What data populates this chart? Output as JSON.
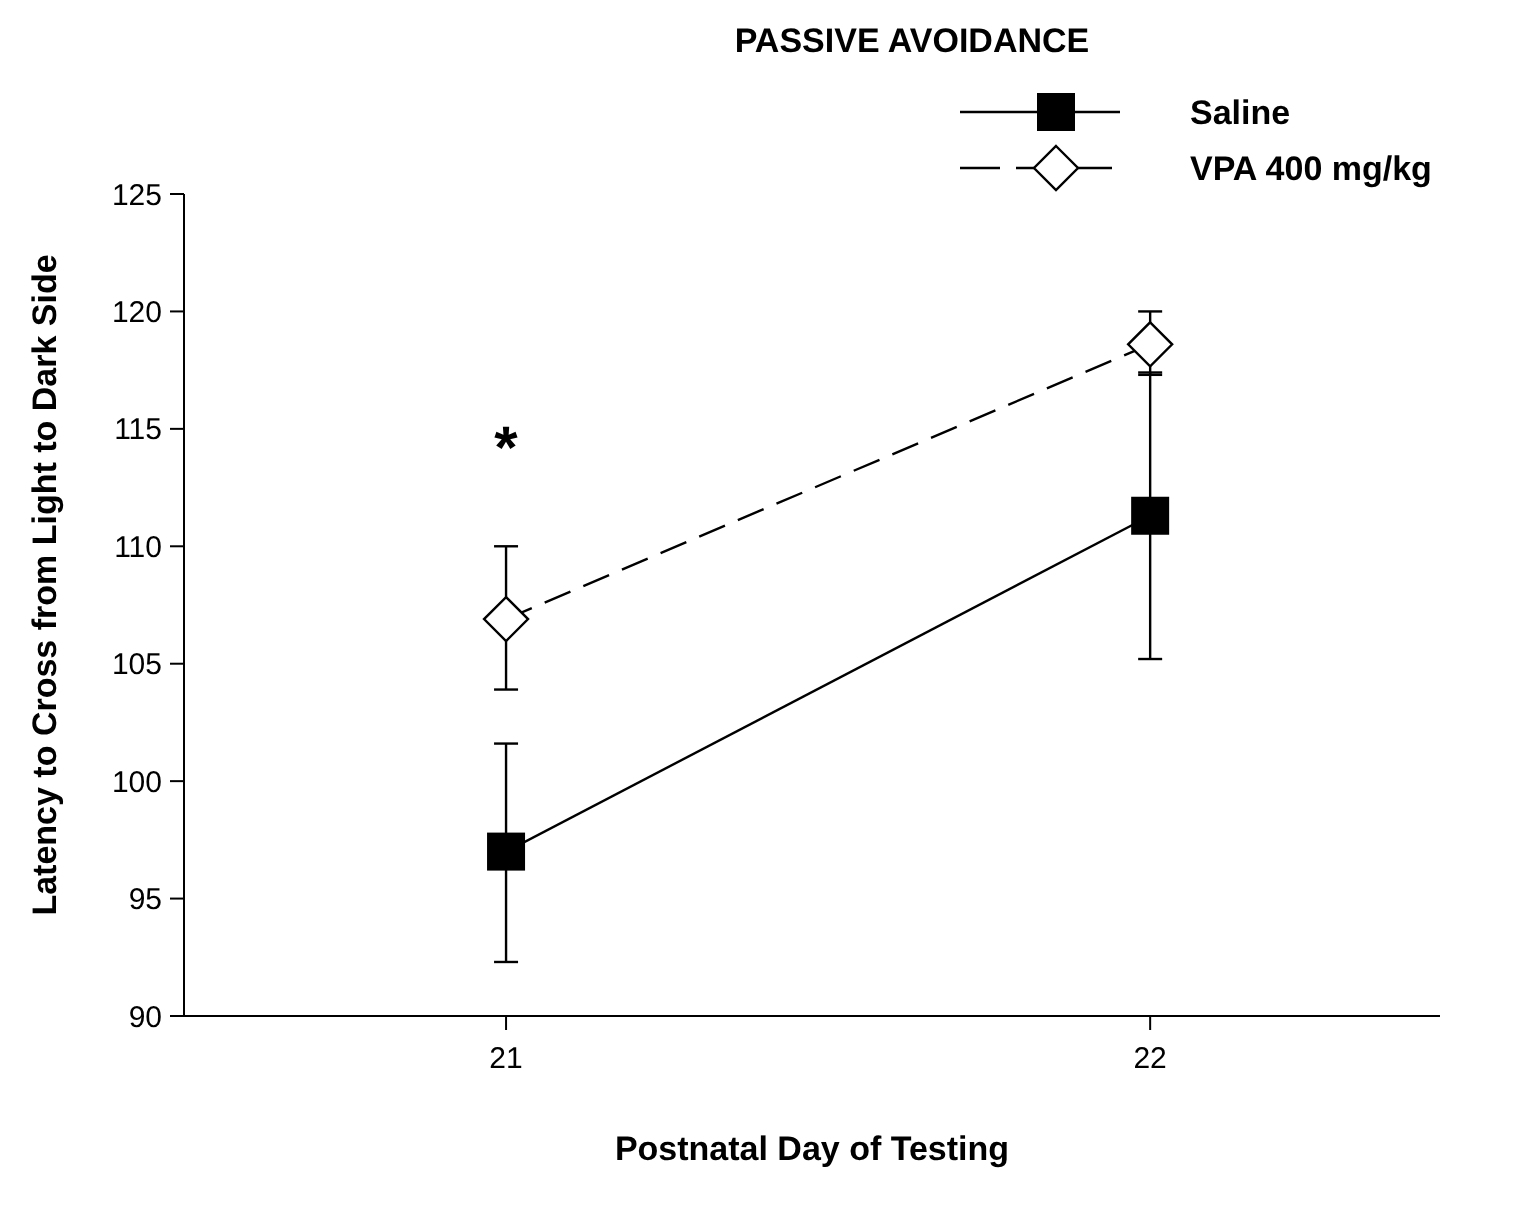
{
  "chart_data": {
    "type": "line",
    "title": "PASSIVE AVOIDANCE",
    "xlabel": "Postnatal Day of Testing",
    "ylabel": "Latency to Cross from Light to Dark Side",
    "x": [
      21,
      22
    ],
    "xlim": [
      20.5,
      22.45
    ],
    "xticks": [
      21,
      22
    ],
    "ylim": [
      90,
      125
    ],
    "yticks": [
      90,
      95,
      100,
      105,
      110,
      115,
      120,
      125
    ],
    "grid": false,
    "legend": "top right",
    "series": [
      {
        "name": "Saline",
        "color": "#000000",
        "marker": "square",
        "line_style": "solid",
        "values": [
          97,
          111.3
        ],
        "errors": [
          [
            92.3,
            101.6
          ],
          [
            105.2,
            117.4
          ]
        ]
      },
      {
        "name": "VPA 400 mg/kg",
        "color": "#ffffff",
        "marker": "diamond",
        "line_style": "dashed",
        "values": [
          106.9,
          118.6
        ],
        "errors": [
          [
            103.9,
            110
          ],
          [
            117.3,
            120
          ]
        ]
      }
    ],
    "annotations": [
      "*"
    ]
  }
}
